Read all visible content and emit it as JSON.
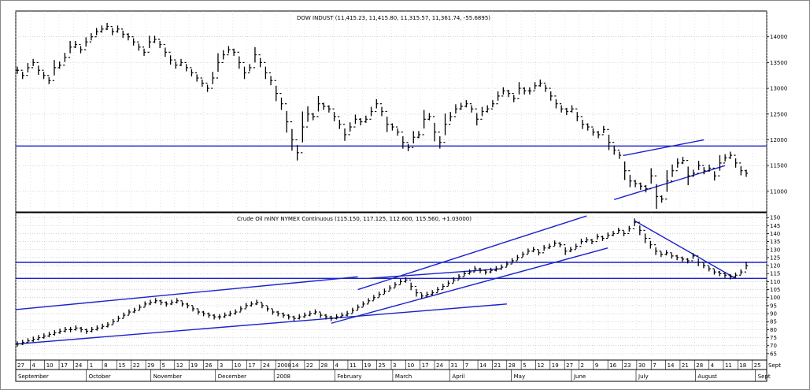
{
  "chart_data": [
    {
      "type": "line",
      "title": "DOW INDUST (11,415.23, 11,415.80, 11,315.57, 11,361.74, -55.6895)",
      "xlabel": "",
      "ylabel": "",
      "ylim": [
        10600,
        14500
      ],
      "yticks": [
        11000,
        11500,
        12000,
        12500,
        13000,
        13500,
        14000
      ],
      "grid": true,
      "series": [
        {
          "values": [
            13350,
            13250,
            13400,
            13500,
            13350,
            13250,
            13150,
            13400,
            13450,
            13600,
            13800,
            13850,
            13750,
            13900,
            14000,
            14100,
            14150,
            14200,
            14100,
            14150,
            14050,
            14000,
            13900,
            13800,
            13700,
            13900,
            13950,
            13850,
            13700,
            13550,
            13450,
            13500,
            13400,
            13300,
            13200,
            13100,
            13000,
            13200,
            13500,
            13650,
            13750,
            13700,
            13500,
            13300,
            13400,
            13650,
            13500,
            13300,
            13150,
            12900,
            12700,
            12350,
            12000,
            11750,
            12250,
            12500,
            12450,
            12700,
            12650,
            12600,
            12450,
            12300,
            12100,
            12250,
            12400,
            12350,
            12400,
            12550,
            12700,
            12550,
            12300,
            12250,
            12150,
            11950,
            11850,
            12050,
            12100,
            12400,
            12450,
            12150,
            11950,
            12300,
            12450,
            12600,
            12650,
            12700,
            12600,
            12400,
            12550,
            12600,
            12700,
            12850,
            12950,
            12900,
            12800,
            13000,
            12950,
            12950,
            13050,
            13100,
            13000,
            12850,
            12700,
            12600,
            12550,
            12600,
            12450,
            12300,
            12250,
            12150,
            12100,
            12200,
            11950,
            11800,
            11700,
            11400,
            11200,
            11150,
            11100,
            11050,
            11300,
            10900,
            10850,
            11200,
            11400,
            11550,
            11600,
            11300,
            11350,
            11500,
            11400,
            11450,
            11300,
            11550,
            11650,
            11700,
            11550,
            11400,
            11350
          ],
          "trend_lines": [
            {
              "points": [
                [
                  "2008-07-15",
                  11850
                ],
                [
                  "2008-07-15",
                  11850
                ]
              ]
            }
          ]
        }
      ],
      "horizontal_lines": [
        11880
      ],
      "trend_lines": [
        {
          "start": [
            115,
            11700
          ],
          "end": [
            130,
            12000
          ]
        },
        {
          "start": [
            113,
            10840
          ],
          "end": [
            134,
            11500
          ]
        }
      ]
    },
    {
      "type": "line",
      "title": "Crude Oil miNY NYMEX Continuous (115.150, 117.125, 112.600, 115.560, +1.03000)",
      "xlabel": "",
      "ylabel": "",
      "ylim": [
        61,
        153
      ],
      "yticks": [
        65,
        70,
        75,
        80,
        85,
        90,
        95,
        100,
        105,
        110,
        115,
        120,
        125,
        130,
        135,
        140,
        145,
        150
      ],
      "grid": true,
      "series": [
        {
          "values": [
            71,
            72,
            73,
            74,
            75,
            76,
            77,
            78,
            79,
            80,
            80,
            81,
            80,
            79,
            80,
            81,
            82,
            83,
            85,
            87,
            89,
            91,
            92,
            94,
            96,
            97,
            98,
            97,
            96,
            97,
            98,
            96,
            95,
            93,
            91,
            90,
            89,
            88,
            88,
            89,
            90,
            91,
            93,
            95,
            96,
            97,
            95,
            93,
            91,
            90,
            89,
            88,
            87,
            88,
            89,
            90,
            91,
            89,
            88,
            87,
            88,
            89,
            90,
            92,
            94,
            96,
            98,
            100,
            102,
            104,
            106,
            108,
            110,
            111,
            107,
            103,
            101,
            102,
            103,
            105,
            107,
            109,
            111,
            113,
            115,
            116,
            118,
            117,
            116,
            117,
            118,
            119,
            121,
            123,
            125,
            127,
            129,
            130,
            128,
            131,
            132,
            134,
            133,
            129,
            130,
            132,
            135,
            136,
            135,
            138,
            137,
            139,
            140,
            142,
            140,
            143,
            147,
            142,
            137,
            133,
            129,
            127,
            128,
            126,
            125,
            124,
            123,
            126,
            122,
            120,
            118,
            116,
            115,
            114,
            113,
            114,
            116,
            120
          ],
          "trend_lines": []
        }
      ],
      "horizontal_lines": [
        122,
        112
      ],
      "trend_lines": [
        {
          "start": [
            0,
            92.5
          ],
          "end": [
            64,
            113
          ]
        },
        {
          "start": [
            0,
            71
          ],
          "end": [
            92,
            96
          ]
        },
        {
          "start": [
            59,
            84
          ],
          "end": [
            111,
            131
          ]
        },
        {
          "start": [
            64,
            105
          ],
          "end": [
            107,
            151
          ]
        },
        {
          "start": [
            66,
            112
          ],
          "end": [
            91,
            118
          ]
        },
        {
          "start": [
            116,
            148
          ],
          "end": [
            135,
            112
          ]
        }
      ]
    }
  ],
  "x_axis": {
    "day_labels": [
      "27",
      "4",
      "10",
      "17",
      "24",
      "1",
      "8",
      "15",
      "22",
      "29",
      "5",
      "12",
      "19",
      "26",
      "3",
      "10",
      "17",
      "24",
      "2008",
      "14",
      "22",
      "28",
      "4",
      "11",
      "19",
      "25",
      "3",
      "10",
      "17",
      "24",
      "31",
      "7",
      "14",
      "21",
      "28",
      "5",
      "12",
      "19",
      "27",
      "2",
      "9",
      "16",
      "23",
      "30",
      "7",
      "14",
      "21",
      "28",
      "4",
      "11",
      "18",
      "25",
      "Sept"
    ],
    "month_labels": [
      "September",
      "October",
      "November",
      "December",
      "2008",
      "February",
      "March",
      "April",
      "May",
      "June",
      "July",
      "August",
      "Sept"
    ]
  }
}
